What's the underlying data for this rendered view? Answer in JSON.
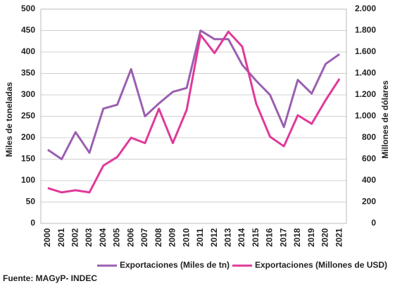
{
  "chart_data": {
    "type": "line",
    "categories": [
      "2000",
      "2001",
      "2002",
      "2003",
      "2004",
      "2005",
      "2006",
      "2007",
      "2008",
      "2009",
      "2010",
      "2011",
      "2012",
      "2013",
      "2014",
      "2015",
      "2016",
      "2017",
      "2018",
      "2019",
      "2020",
      "2021"
    ],
    "series": [
      {
        "name": "Exportaciones (Miles de tn)",
        "color": "#9b5fb0",
        "values": [
          172,
          150,
          213,
          165,
          268,
          277,
          360,
          250,
          280,
          307,
          316,
          450,
          430,
          430,
          370,
          333,
          300,
          225,
          335,
          303,
          372,
          395
        ]
      },
      {
        "name": "Exportaciones (Millones de USD)",
        "color": "#e0399a",
        "axis": "y2",
        "values": [
          330,
          290,
          310,
          290,
          540,
          620,
          800,
          750,
          1070,
          750,
          1060,
          1760,
          1590,
          1790,
          1650,
          1120,
          810,
          720,
          1010,
          930,
          1150,
          1350
        ]
      }
    ],
    "ylabel": "Miles de toneladas",
    "y2label": "Millones de dólares",
    "ylim": [
      0,
      500
    ],
    "yticks": [
      0,
      50,
      100,
      150,
      200,
      250,
      300,
      350,
      400,
      450,
      500
    ],
    "y2lim": [
      0,
      2000
    ],
    "y2ticks": [
      0,
      200,
      400,
      600,
      800,
      {
        "value": 1000,
        "label": "1.000"
      },
      {
        "value": 1200,
        "label": "1.200"
      },
      {
        "value": 1400,
        "label": "1.400"
      },
      {
        "value": 1600,
        "label": "1.600"
      },
      {
        "value": 1800,
        "label": "1.800"
      },
      {
        "value": 2000,
        "label": "2.000"
      }
    ],
    "grid": true,
    "legend": "bottom"
  },
  "source": "Fuente: MAGyP- INDEC"
}
